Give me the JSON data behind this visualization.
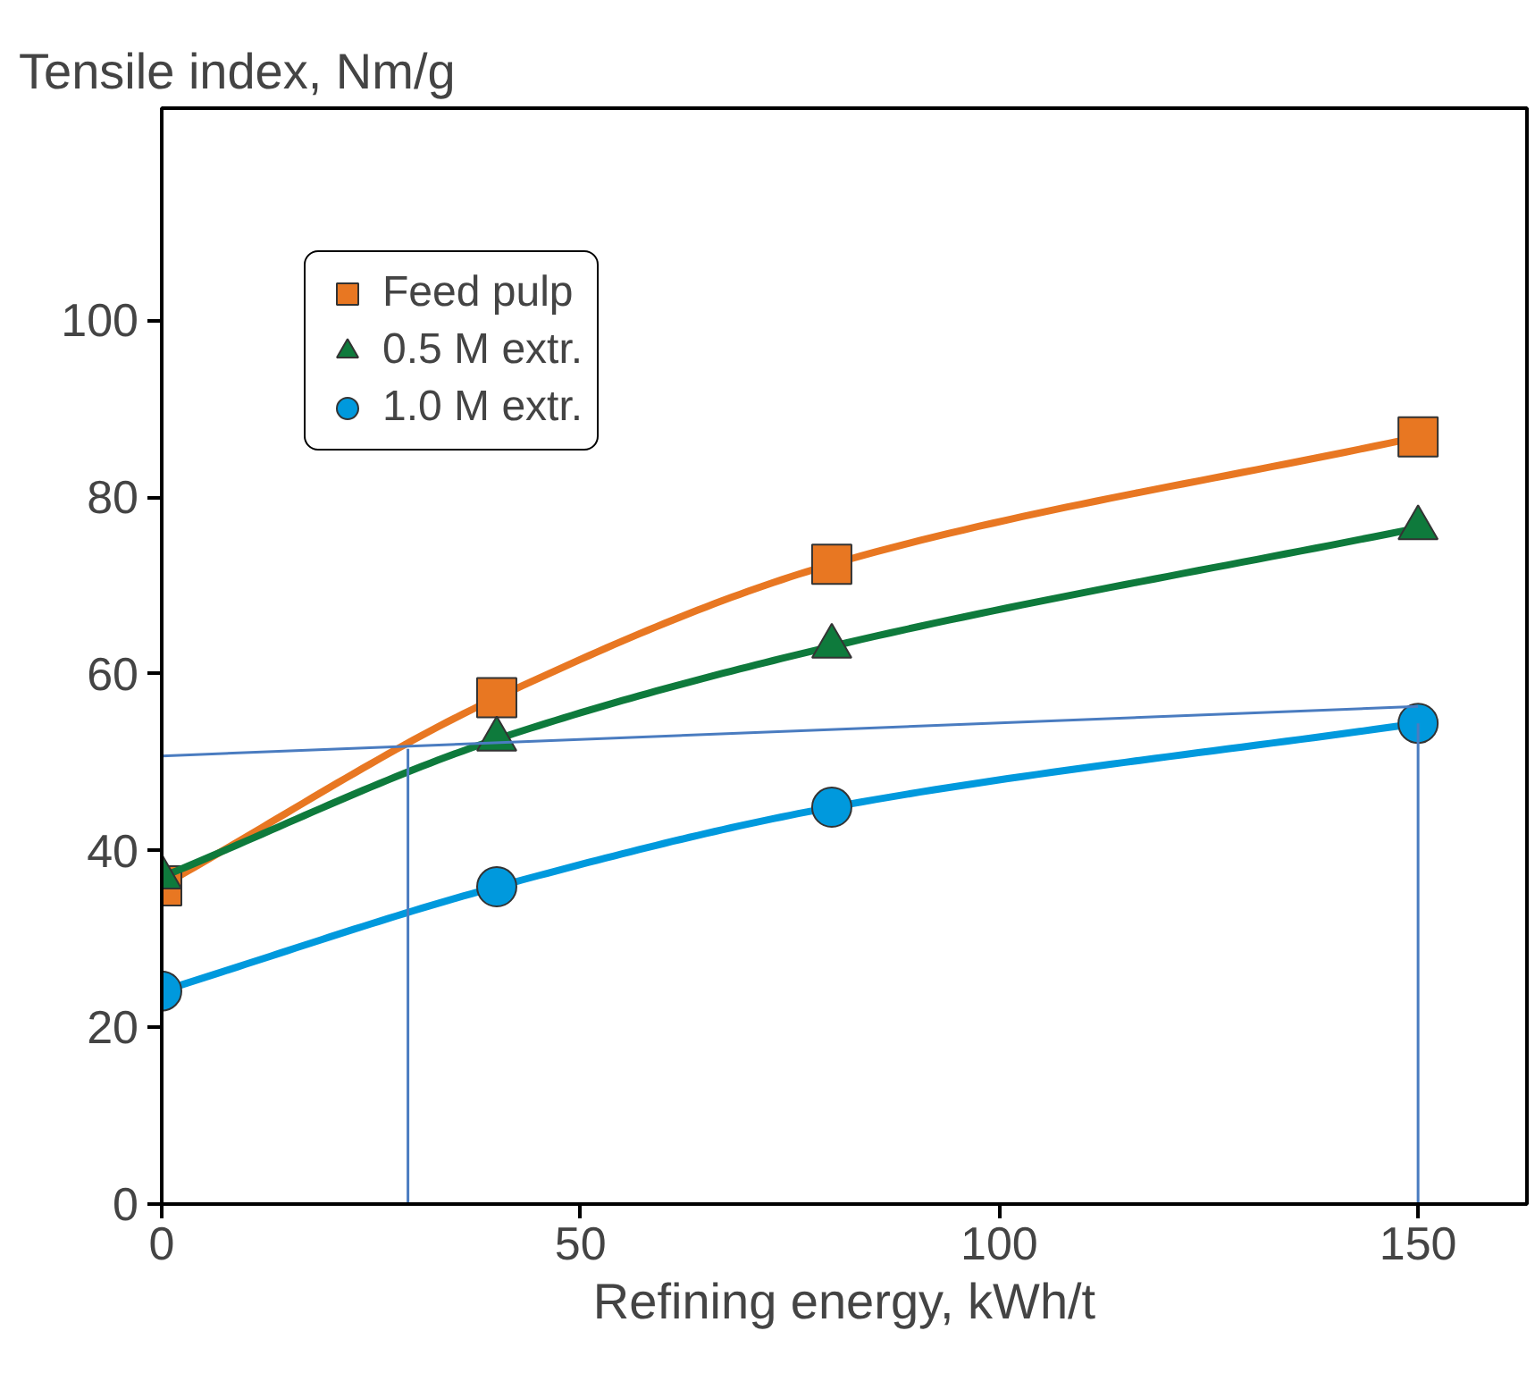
{
  "chart_data": {
    "type": "line",
    "ylabel": "Tensile index, Nm/g",
    "xlabel": "Refining energy, kWh/t",
    "xlim": [
      0,
      163
    ],
    "ylim": [
      0,
      124
    ],
    "xticks": [
      0,
      50,
      100,
      150
    ],
    "yticks": [
      0,
      20,
      40,
      60,
      80,
      100
    ],
    "grid": false,
    "legend": "top left",
    "series": [
      {
        "name": "Feed pulp",
        "color": "#e87722",
        "marker": "square",
        "x": [
          0,
          40,
          80,
          150
        ],
        "values": [
          36,
          57.3,
          72.4,
          86.8
        ]
      },
      {
        "name": "0.5 M extr.",
        "color": "#0e7a3c",
        "marker": "triangle",
        "x": [
          0,
          40,
          80,
          150
        ],
        "values": [
          37,
          52.6,
          63.1,
          76.5
        ]
      },
      {
        "name": "1.0 M extr.",
        "color": "#0099dd",
        "marker": "circle",
        "x": [
          0,
          40,
          80,
          150
        ],
        "values": [
          24.1,
          35.9,
          44.9,
          54.4
        ]
      },
      {
        "color": "#4a7cc0",
        "marker": "none",
        "x": [
          0,
          150
        ],
        "values": [
          50.7,
          56.3
        ]
      },
      {
        "color": "#4a7cc0",
        "marker": "none",
        "x": [
          29.4,
          29.4
        ],
        "values": [
          0,
          51.5
        ]
      },
      {
        "color": "#4a7cc0",
        "marker": "none",
        "x": [
          150,
          150
        ],
        "values": [
          0,
          54.4
        ]
      }
    ]
  }
}
